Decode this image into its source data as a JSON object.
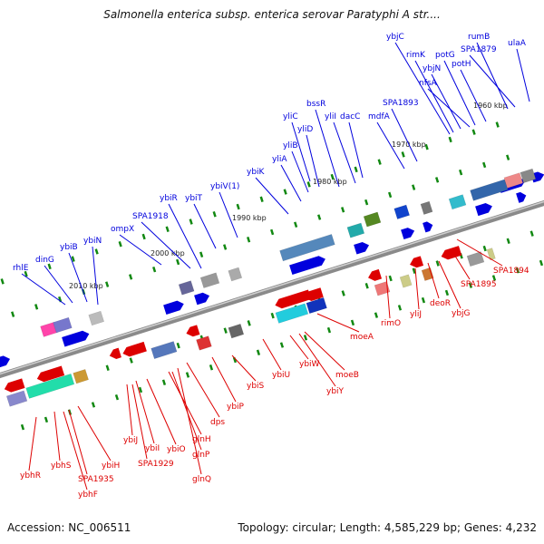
{
  "title": "Salmonella enterica subsp. enterica serovar Paratyphi A str....",
  "footer": {
    "accession": "Accession: NC_006511",
    "topology": "Topology: circular; Length: 4,585,229 bp; Genes: 4,232"
  },
  "colors": {
    "forward": "#0000dd",
    "reverse": "#dd0000",
    "backbone": "#888888",
    "tick": "#118811"
  },
  "ruler": [
    "2010 kbp",
    "2000 kbp",
    "1990 kbp",
    "1980 kbp",
    "1970 kbp",
    "1960 kbp"
  ],
  "genes_forward": [
    "rhlE",
    "dinG",
    "ybiB",
    "ybiN",
    "ompX",
    "SPA1918",
    "ybiR",
    "ybiT",
    "ybiV(1)",
    "ybiK",
    "yliA",
    "yliB",
    "yliD",
    "yliC",
    "bssR",
    "yliI",
    "dacC",
    "mdfA",
    "SPA1893",
    "ybjC",
    "rimK",
    "ybjN",
    "nfsA",
    "potG",
    "potH",
    "rumB",
    "SPA1879",
    "ulaA"
  ],
  "genes_reverse": [
    "ybhR",
    "ybhS",
    "ybhF",
    "SPA1935",
    "ybiH",
    "ybiJ",
    "ybiI",
    "SPA1929",
    "ybiO",
    "glnH",
    "glnP",
    "glnQ",
    "dps",
    "ybiP",
    "ybiS",
    "ybiU",
    "ybiW",
    "ybiY",
    "moeB",
    "moeA",
    "rimO",
    "yliJ",
    "deoR",
    "ybjG",
    "SPA1895",
    "SPA1894"
  ]
}
